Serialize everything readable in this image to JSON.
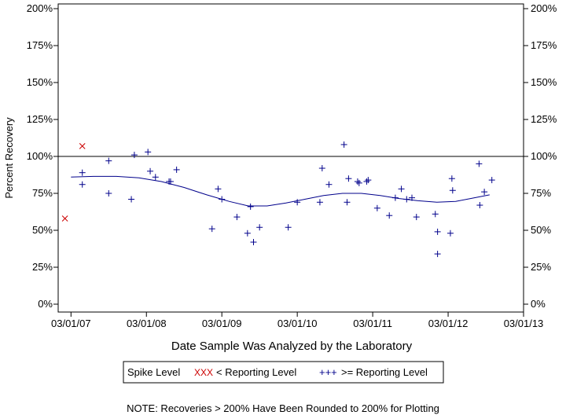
{
  "chart_data": {
    "type": "scatter",
    "xlabel": "Date Sample Was Analyzed by the Laboratory",
    "ylabel": "Percent Recovery",
    "ylim": [
      0,
      200
    ],
    "yticks": [
      "0%",
      "25%",
      "50%",
      "75%",
      "100%",
      "125%",
      "150%",
      "175%",
      "200%"
    ],
    "ytick_values": [
      0,
      25,
      50,
      75,
      100,
      125,
      150,
      175,
      200
    ],
    "xlim": [
      2006.83,
      2013.0
    ],
    "xticks": [
      "03/01/07",
      "03/01/08",
      "03/01/09",
      "03/01/10",
      "03/01/11",
      "03/01/12",
      "03/01/13"
    ],
    "xtick_values": [
      2007.0,
      2008.0,
      2009.0,
      2010.0,
      2011.0,
      2012.0,
      2013.0
    ],
    "reference_line": 100,
    "series": [
      {
        "name": "< Reporting Level",
        "marker": "x",
        "color": "#cc0000",
        "points": [
          [
            2006.92,
            58
          ],
          [
            2007.15,
            107
          ]
        ]
      },
      {
        "name": ">= Reporting Level",
        "marker": "+",
        "color": "#00008b",
        "points": [
          [
            2007.15,
            89
          ],
          [
            2007.15,
            81
          ],
          [
            2007.5,
            97
          ],
          [
            2007.5,
            75
          ],
          [
            2007.8,
            71
          ],
          [
            2007.84,
            101
          ],
          [
            2008.02,
            103
          ],
          [
            2008.05,
            90
          ],
          [
            2008.12,
            86
          ],
          [
            2008.3,
            83
          ],
          [
            2008.32,
            83
          ],
          [
            2008.4,
            91
          ],
          [
            2008.87,
            51
          ],
          [
            2008.95,
            78
          ],
          [
            2009.0,
            71
          ],
          [
            2009.2,
            59
          ],
          [
            2009.34,
            48
          ],
          [
            2009.38,
            66
          ],
          [
            2009.42,
            42
          ],
          [
            2009.5,
            52
          ],
          [
            2009.88,
            52
          ],
          [
            2010.0,
            69
          ],
          [
            2010.3,
            69
          ],
          [
            2010.33,
            92
          ],
          [
            2010.42,
            81
          ],
          [
            2010.62,
            108
          ],
          [
            2010.68,
            85
          ],
          [
            2010.66,
            69
          ],
          [
            2010.8,
            83
          ],
          [
            2010.82,
            82
          ],
          [
            2010.92,
            83
          ],
          [
            2010.94,
            84
          ],
          [
            2011.06,
            65
          ],
          [
            2011.22,
            60
          ],
          [
            2011.3,
            72
          ],
          [
            2011.38,
            78
          ],
          [
            2011.45,
            71
          ],
          [
            2011.52,
            72
          ],
          [
            2011.58,
            59
          ],
          [
            2011.83,
            61
          ],
          [
            2011.86,
            49
          ],
          [
            2011.86,
            34
          ],
          [
            2012.03,
            48
          ],
          [
            2012.05,
            85
          ],
          [
            2012.06,
            77
          ],
          [
            2012.41,
            95
          ],
          [
            2012.42,
            67
          ],
          [
            2012.48,
            76
          ],
          [
            2012.58,
            84
          ]
        ]
      }
    ],
    "trend_line": {
      "color": "#00008b",
      "points": [
        [
          2007.0,
          86
        ],
        [
          2007.3,
          86.5
        ],
        [
          2007.6,
          86.5
        ],
        [
          2007.9,
          85.5
        ],
        [
          2008.2,
          83
        ],
        [
          2008.5,
          79
        ],
        [
          2008.8,
          74
        ],
        [
          2009.1,
          69.5
        ],
        [
          2009.35,
          66.5
        ],
        [
          2009.6,
          66.5
        ],
        [
          2009.85,
          68.5
        ],
        [
          2010.1,
          71
        ],
        [
          2010.35,
          73.5
        ],
        [
          2010.6,
          75
        ],
        [
          2010.85,
          75
        ],
        [
          2011.1,
          73.5
        ],
        [
          2011.35,
          71.5
        ],
        [
          2011.6,
          70
        ],
        [
          2011.85,
          69
        ],
        [
          2012.1,
          69.5
        ],
        [
          2012.35,
          72
        ],
        [
          2012.55,
          74
        ]
      ]
    },
    "legend": {
      "title": "Spike Level",
      "entries": [
        {
          "symbols": "XXX",
          "label": "< Reporting Level",
          "color": "#cc0000"
        },
        {
          "symbols": "+++",
          "label": ">= Reporting Level",
          "color": "#00008b"
        }
      ]
    },
    "note": "NOTE: Recoveries > 200% Have Been Rounded to 200% for Plotting"
  }
}
